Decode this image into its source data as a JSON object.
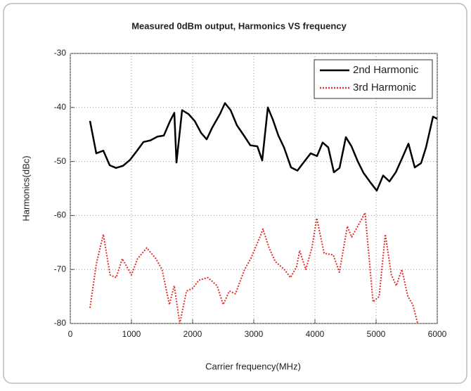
{
  "chart_data": {
    "type": "line",
    "title": "Measured 0dBm output, Harmonics VS frequency",
    "x_label": "Carrier frequency(MHz)",
    "y_label": "Harmonics(dBc)",
    "xlim": [
      0,
      6000
    ],
    "xticks": [
      0,
      1000,
      2000,
      3000,
      4000,
      5000,
      6000
    ],
    "ylim": [
      -80,
      -30
    ],
    "yticks": [
      -30,
      -40,
      -50,
      -60,
      -70,
      -80
    ],
    "grid": true,
    "legend": "upper right",
    "series": [
      {
        "name": "2nd Harmonic",
        "color": "#000000",
        "style": "solid",
        "x": [
          322,
          425,
          540,
          644,
          747,
          862,
          977,
          1092,
          1195,
          1310,
          1425,
          1529,
          1632,
          1701,
          1736,
          1828,
          1931,
          2034,
          2138,
          2230,
          2322,
          2448,
          2529,
          2621,
          2724,
          2839,
          2943,
          3058,
          3138,
          3230,
          3310,
          3402,
          3494,
          3609,
          3713,
          3827,
          3931,
          4034,
          4126,
          4218,
          4310,
          4402,
          4506,
          4598,
          4701,
          4793,
          4908,
          5011,
          5115,
          5218,
          5322,
          5425,
          5529,
          5632,
          5736,
          5816,
          5931,
          6000
        ],
        "values": [
          -42.5,
          -48.5,
          -48,
          -50.7,
          -51.2,
          -50.8,
          -49.7,
          -48,
          -46.4,
          -46.1,
          -45.4,
          -45.2,
          -42.5,
          -41,
          -50.2,
          -40.5,
          -41.2,
          -42.5,
          -44.7,
          -45.9,
          -43.7,
          -41.2,
          -39.2,
          -40.5,
          -43.3,
          -45.2,
          -47,
          -47.2,
          -49.8,
          -40,
          -42.2,
          -45.2,
          -47.4,
          -51.1,
          -51.7,
          -50,
          -48.5,
          -49,
          -46.5,
          -47.4,
          -52,
          -51.2,
          -45.5,
          -47.2,
          -50,
          -52.1,
          -53.9,
          -55.4,
          -52.6,
          -53.7,
          -52,
          -49.4,
          -46.7,
          -51.1,
          -50.3,
          -47.4,
          -41.7,
          -42.1
        ]
      },
      {
        "name": "3rd Harmonic",
        "color": "#e0302a",
        "style": "dotted",
        "x": [
          322,
          425,
          540,
          650,
          750,
          850,
          900,
          1000,
          1100,
          1250,
          1400,
          1500,
          1620,
          1700,
          1790,
          1900,
          2000,
          2100,
          2250,
          2400,
          2500,
          2600,
          2700,
          2850,
          2950,
          3100,
          3150,
          3250,
          3350,
          3500,
          3600,
          3700,
          3750,
          3850,
          3950,
          4030,
          4150,
          4300,
          4400,
          4530,
          4600,
          4700,
          4820,
          4950,
          5050,
          5150,
          5250,
          5330,
          5420,
          5520,
          5600,
          5680
        ],
        "values": [
          -77.1,
          -69,
          -63.5,
          -71,
          -71.5,
          -68,
          -69,
          -71,
          -68,
          -66,
          -68,
          -70,
          -76.5,
          -73,
          -80,
          -74,
          -73.5,
          -72,
          -71.5,
          -73,
          -76.5,
          -74,
          -74.5,
          -70,
          -68,
          -64,
          -62.5,
          -66,
          -68.5,
          -70,
          -71.5,
          -69.5,
          -66.5,
          -70,
          -66,
          -60.5,
          -67,
          -67.3,
          -70.5,
          -62,
          -64,
          -62,
          -59.5,
          -76,
          -75,
          -63.5,
          -71,
          -73,
          -70,
          -75,
          -76.5,
          -80
        ]
      }
    ]
  }
}
